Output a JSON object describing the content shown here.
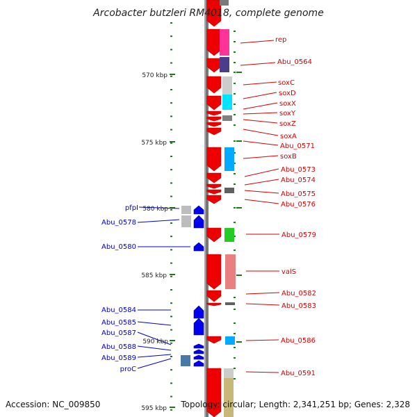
{
  "header": {
    "title": "Arcobacter butzleri RM4018, complete genome"
  },
  "footer": {
    "accession": "Accession: NC_009850",
    "summary": "Topology: circular; Length: 2,341,251 bp; Genes: 2,328"
  },
  "scale": {
    "labels": [
      "570 kbp",
      "575 kbp",
      "580 kbp",
      "585 kbp",
      "590 kbp",
      "595 kbp"
    ]
  },
  "genes_forward": [
    {
      "label": "rep",
      "color": "#ff3399"
    },
    {
      "label": "Abu_0564",
      "color": "#4b3c8c"
    },
    {
      "label": "soxC",
      "color": "#c0c0c0"
    },
    {
      "label": "soxD",
      "color": "#c0c0c0"
    },
    {
      "label": "soxX",
      "color": "#00e5ff"
    },
    {
      "label": "soxY",
      "color": "#808080"
    },
    {
      "label": "soxZ",
      "color": "#808080"
    },
    {
      "label": "soxA",
      "color": "#808080"
    },
    {
      "label": "Abu_0571",
      "color": "#808080"
    },
    {
      "label": "soxB",
      "color": "#00aaff"
    },
    {
      "label": "Abu_0573",
      "color": "#808080"
    },
    {
      "label": "Abu_0574",
      "color": "#808080"
    },
    {
      "label": "Abu_0575",
      "color": "#606060"
    },
    {
      "label": "Abu_0576",
      "color": "#808080"
    },
    {
      "label": "Abu_0579",
      "color": "#22cc22"
    },
    {
      "label": "valS",
      "color": "#e88080"
    },
    {
      "label": "Abu_0582",
      "color": "#808080"
    },
    {
      "label": "Abu_0583",
      "color": "#606060"
    },
    {
      "label": "Abu_0586",
      "color": "#00aaff"
    },
    {
      "label": "Abu_0591",
      "color": "#c8b878"
    }
  ],
  "genes_reverse": [
    {
      "label": "pfpI",
      "color": "#c0c0c0"
    },
    {
      "label": "Abu_0578",
      "color": "#c0c0c0"
    },
    {
      "label": "Abu_0580",
      "color": "#c0c0c0"
    },
    {
      "label": "Abu_0584",
      "color": "#c0c0c0"
    },
    {
      "label": "Abu_0585",
      "color": "#c0c0c0"
    },
    {
      "label": "Abu_0587",
      "color": "#c0c0c0"
    },
    {
      "label": "Abu_0588",
      "color": "#c0c0c0"
    },
    {
      "label": "Abu_0589",
      "color": "#c0c0c0"
    },
    {
      "label": "proC",
      "color": "#4a78a8"
    }
  ]
}
